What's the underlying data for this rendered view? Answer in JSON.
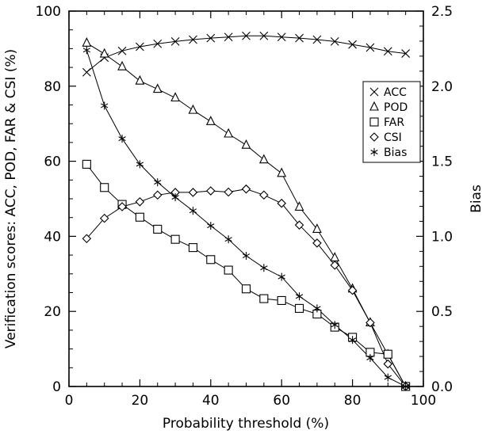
{
  "chart_data": {
    "type": "line",
    "xlabel": "Probability threshold (%)",
    "ylabel": "Verification scores: ACC, POD, FAR & CSI (%)",
    "y2label": "Bias",
    "xlim": [
      0,
      100
    ],
    "ylim": [
      0,
      100
    ],
    "y2lim": [
      0,
      2.5
    ],
    "x_ticks": [
      "0",
      "20",
      "40",
      "60",
      "80",
      "100"
    ],
    "y_ticks": [
      "0",
      "20",
      "40",
      "60",
      "80",
      "100"
    ],
    "y2_ticks": [
      "0.0",
      "0.5",
      "1.0",
      "1.5",
      "2.0",
      "2.5"
    ],
    "grid": false,
    "legend_position": "top-right",
    "x": [
      5,
      10,
      15,
      20,
      25,
      30,
      35,
      40,
      45,
      50,
      55,
      60,
      65,
      70,
      75,
      80,
      85,
      90,
      95
    ],
    "series": [
      {
        "name": "ACC",
        "marker": "cross",
        "axis": "left",
        "values": [
          83.7,
          87.6,
          89.4,
          90.5,
          91.3,
          91.9,
          92.4,
          92.8,
          93.1,
          93.4,
          93.4,
          93.1,
          92.8,
          92.4,
          91.9,
          91.1,
          90.3,
          89.3,
          88.7
        ]
      },
      {
        "name": "POD",
        "marker": "triangle",
        "axis": "left",
        "values": [
          91.5,
          88.6,
          85.2,
          81.4,
          79.2,
          76.9,
          73.6,
          70.6,
          67.3,
          64.3,
          60.4,
          56.8,
          47.8,
          41.9,
          34.3,
          26.0,
          17.0,
          8.5,
          0.0
        ]
      },
      {
        "name": "FAR",
        "marker": "square",
        "axis": "left",
        "values": [
          59.2,
          53.0,
          48.5,
          45.1,
          41.9,
          39.2,
          37.0,
          33.8,
          31.0,
          26.0,
          23.4,
          22.9,
          20.8,
          19.3,
          15.8,
          13.1,
          9.1,
          8.6,
          0.0
        ]
      },
      {
        "name": "CSI",
        "marker": "diamond",
        "axis": "left",
        "values": [
          39.4,
          44.8,
          47.9,
          49.2,
          51.0,
          51.7,
          51.7,
          52.1,
          51.8,
          52.6,
          51.0,
          48.8,
          43.0,
          38.2,
          32.3,
          25.6,
          17.0,
          6.0,
          0.0
        ]
      },
      {
        "name": "Bias",
        "marker": "asterisk",
        "axis": "right",
        "values": [
          2.24,
          1.87,
          1.65,
          1.48,
          1.36,
          1.26,
          1.17,
          1.07,
          0.98,
          0.87,
          0.79,
          0.73,
          0.6,
          0.52,
          0.41,
          0.31,
          0.19,
          0.06,
          0.0
        ]
      }
    ]
  }
}
